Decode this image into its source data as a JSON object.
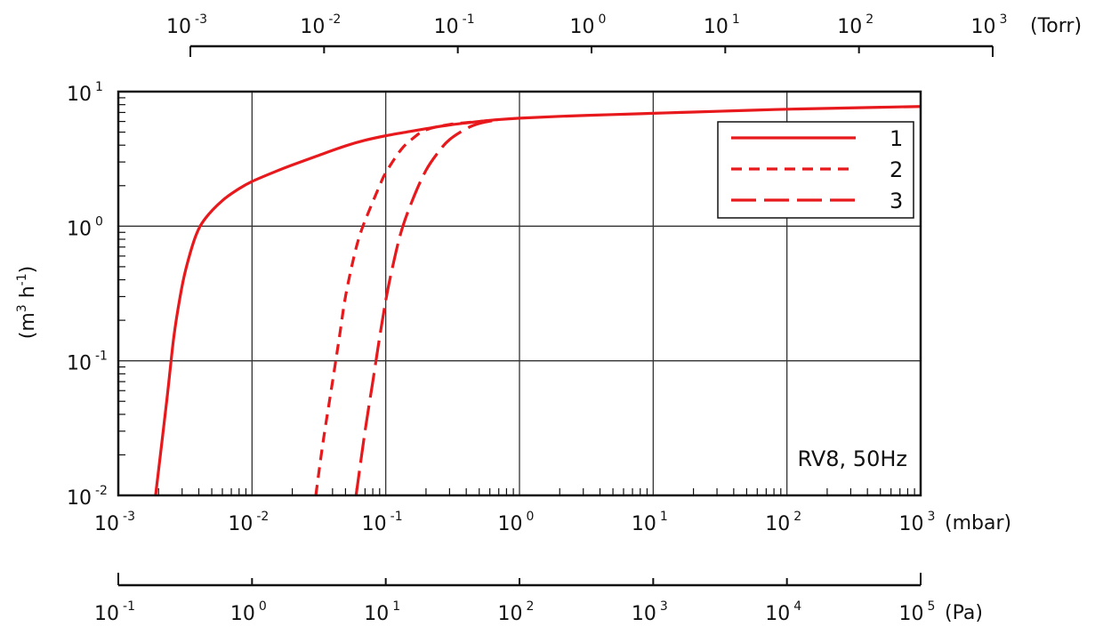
{
  "chart_data": {
    "type": "line",
    "x_scale": "log",
    "y_scale": "log",
    "xlim": [
      0.001,
      1000
    ],
    "ylim": [
      0.01,
      10
    ],
    "grid": true,
    "x_unit": "(mbar)",
    "y_label": "(m³ h⁻¹)",
    "y_label_base": "(m",
    "y_label_sup1": "3",
    "y_label_mid": " h",
    "y_label_sup2": "-1",
    "y_label_end": ")",
    "annotation": "RV8, 50Hz",
    "legend_position": "top-right",
    "mbar_ticks": [
      {
        "base": "10",
        "exp": "-3",
        "value": 0.001
      },
      {
        "base": "10",
        "exp": "-2",
        "value": 0.01
      },
      {
        "base": "10",
        "exp": "-1",
        "value": 0.1
      },
      {
        "base": "10",
        "exp": "0",
        "value": 1
      },
      {
        "base": "10",
        "exp": "1",
        "value": 10
      },
      {
        "base": "10",
        "exp": "2",
        "value": 100
      },
      {
        "base": "10",
        "exp": "3",
        "value": 1000
      }
    ],
    "y_ticks": [
      {
        "base": "10",
        "exp": "1",
        "value": 10
      },
      {
        "base": "10",
        "exp": "0",
        "value": 1
      },
      {
        "base": "10",
        "exp": "-1",
        "value": 0.1
      },
      {
        "base": "10",
        "exp": "-2",
        "value": 0.01
      }
    ],
    "torr_axis": {
      "unit": "(Torr)",
      "ticks": [
        {
          "base": "10",
          "exp": "-3",
          "value": 0.001
        },
        {
          "base": "10",
          "exp": "-2",
          "value": 0.01
        },
        {
          "base": "10",
          "exp": "-1",
          "value": 0.1
        },
        {
          "base": "10",
          "exp": "0",
          "value": 1
        },
        {
          "base": "10",
          "exp": "1",
          "value": 10
        },
        {
          "base": "10",
          "exp": "2",
          "value": 100
        },
        {
          "base": "10",
          "exp": "3",
          "value": 1000
        }
      ]
    },
    "pa_axis": {
      "unit": "(Pa)",
      "ticks": [
        {
          "base": "10",
          "exp": "-1",
          "value": 0.1
        },
        {
          "base": "10",
          "exp": "0",
          "value": 1
        },
        {
          "base": "10",
          "exp": "1",
          "value": 10
        },
        {
          "base": "10",
          "exp": "2",
          "value": 100
        },
        {
          "base": "10",
          "exp": "3",
          "value": 1000
        },
        {
          "base": "10",
          "exp": "4",
          "value": 10000
        },
        {
          "base": "10",
          "exp": "5",
          "value": 100000
        }
      ]
    },
    "series": [
      {
        "name": "1",
        "style": "solid",
        "x": [
          0.0019,
          0.0023,
          0.0026,
          0.0029,
          0.0032,
          0.0038,
          0.0045,
          0.006,
          0.008,
          0.01,
          0.015,
          0.02,
          0.03,
          0.05,
          0.07,
          0.1,
          0.15,
          0.2,
          0.3,
          0.5,
          0.7,
          1,
          2,
          5,
          10,
          20,
          50,
          100,
          200,
          500,
          1000
        ],
        "y": [
          0.01,
          0.05,
          0.15,
          0.3,
          0.48,
          0.85,
          1.15,
          1.55,
          1.9,
          2.15,
          2.55,
          2.85,
          3.3,
          3.95,
          4.35,
          4.7,
          5.05,
          5.3,
          5.65,
          6.0,
          6.2,
          6.35,
          6.55,
          6.75,
          6.9,
          7.05,
          7.25,
          7.4,
          7.5,
          7.65,
          7.75
        ]
      },
      {
        "name": "2",
        "style": "dashed",
        "x": [
          0.03,
          0.034,
          0.04,
          0.045,
          0.05,
          0.058,
          0.065,
          0.075,
          0.09,
          0.1,
          0.13,
          0.16,
          0.2,
          0.3,
          0.5,
          0.7
        ],
        "y": [
          0.01,
          0.025,
          0.07,
          0.15,
          0.3,
          0.6,
          0.9,
          1.3,
          2.0,
          2.5,
          3.7,
          4.5,
          5.2,
          5.7,
          6.0,
          6.2
        ]
      },
      {
        "name": "3",
        "style": "long-dash",
        "x": [
          0.06,
          0.07,
          0.08,
          0.09,
          0.1,
          0.11,
          0.13,
          0.16,
          0.2,
          0.25,
          0.3,
          0.4,
          0.5,
          0.7
        ],
        "y": [
          0.01,
          0.03,
          0.07,
          0.15,
          0.28,
          0.45,
          0.9,
          1.6,
          2.6,
          3.6,
          4.4,
          5.3,
          5.8,
          6.2
        ]
      }
    ]
  },
  "colors": {
    "series": "#e8191c",
    "axis": "#111111",
    "grid": "#333333"
  }
}
